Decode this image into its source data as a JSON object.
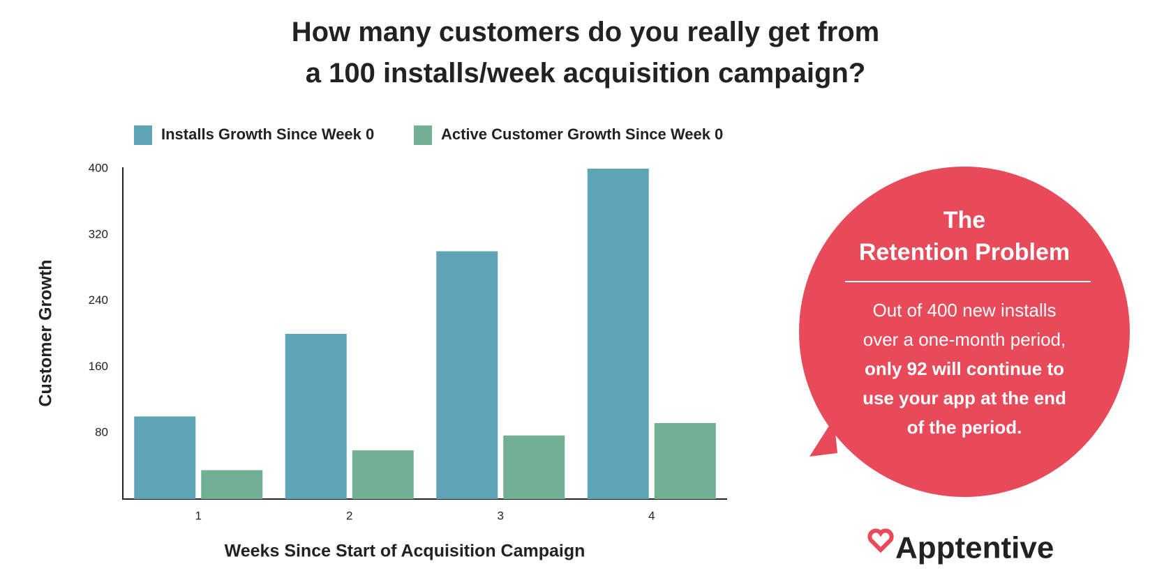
{
  "chart_data": {
    "type": "bar",
    "title": "How many customers do you really get from a 100 installs/week acquisition campaign?",
    "x_label": "Weeks Since Start of Acquisition Campaign",
    "y_label": "Customer Growth",
    "categories": [
      "1",
      "2",
      "3",
      "4"
    ],
    "series": [
      {
        "name": "Installs Growth Since Week 0",
        "color": "#5fa3b6",
        "values": [
          100,
          200,
          300,
          400
        ]
      },
      {
        "name": "Active Customer Growth Since Week 0",
        "color": "#72b095",
        "values": [
          35,
          59,
          77,
          92
        ]
      }
    ],
    "ylim": [
      0,
      400
    ],
    "yticks": [
      80,
      160,
      240,
      320,
      400
    ],
    "grid": false,
    "legend": "top"
  },
  "callout": {
    "title": [
      "The",
      "Retention Problem"
    ],
    "body": "Out of 400 new installs over a one-month period,",
    "body_bold": "only 92 will continue to use your app at the end of the period."
  },
  "logo": "Apptentive"
}
